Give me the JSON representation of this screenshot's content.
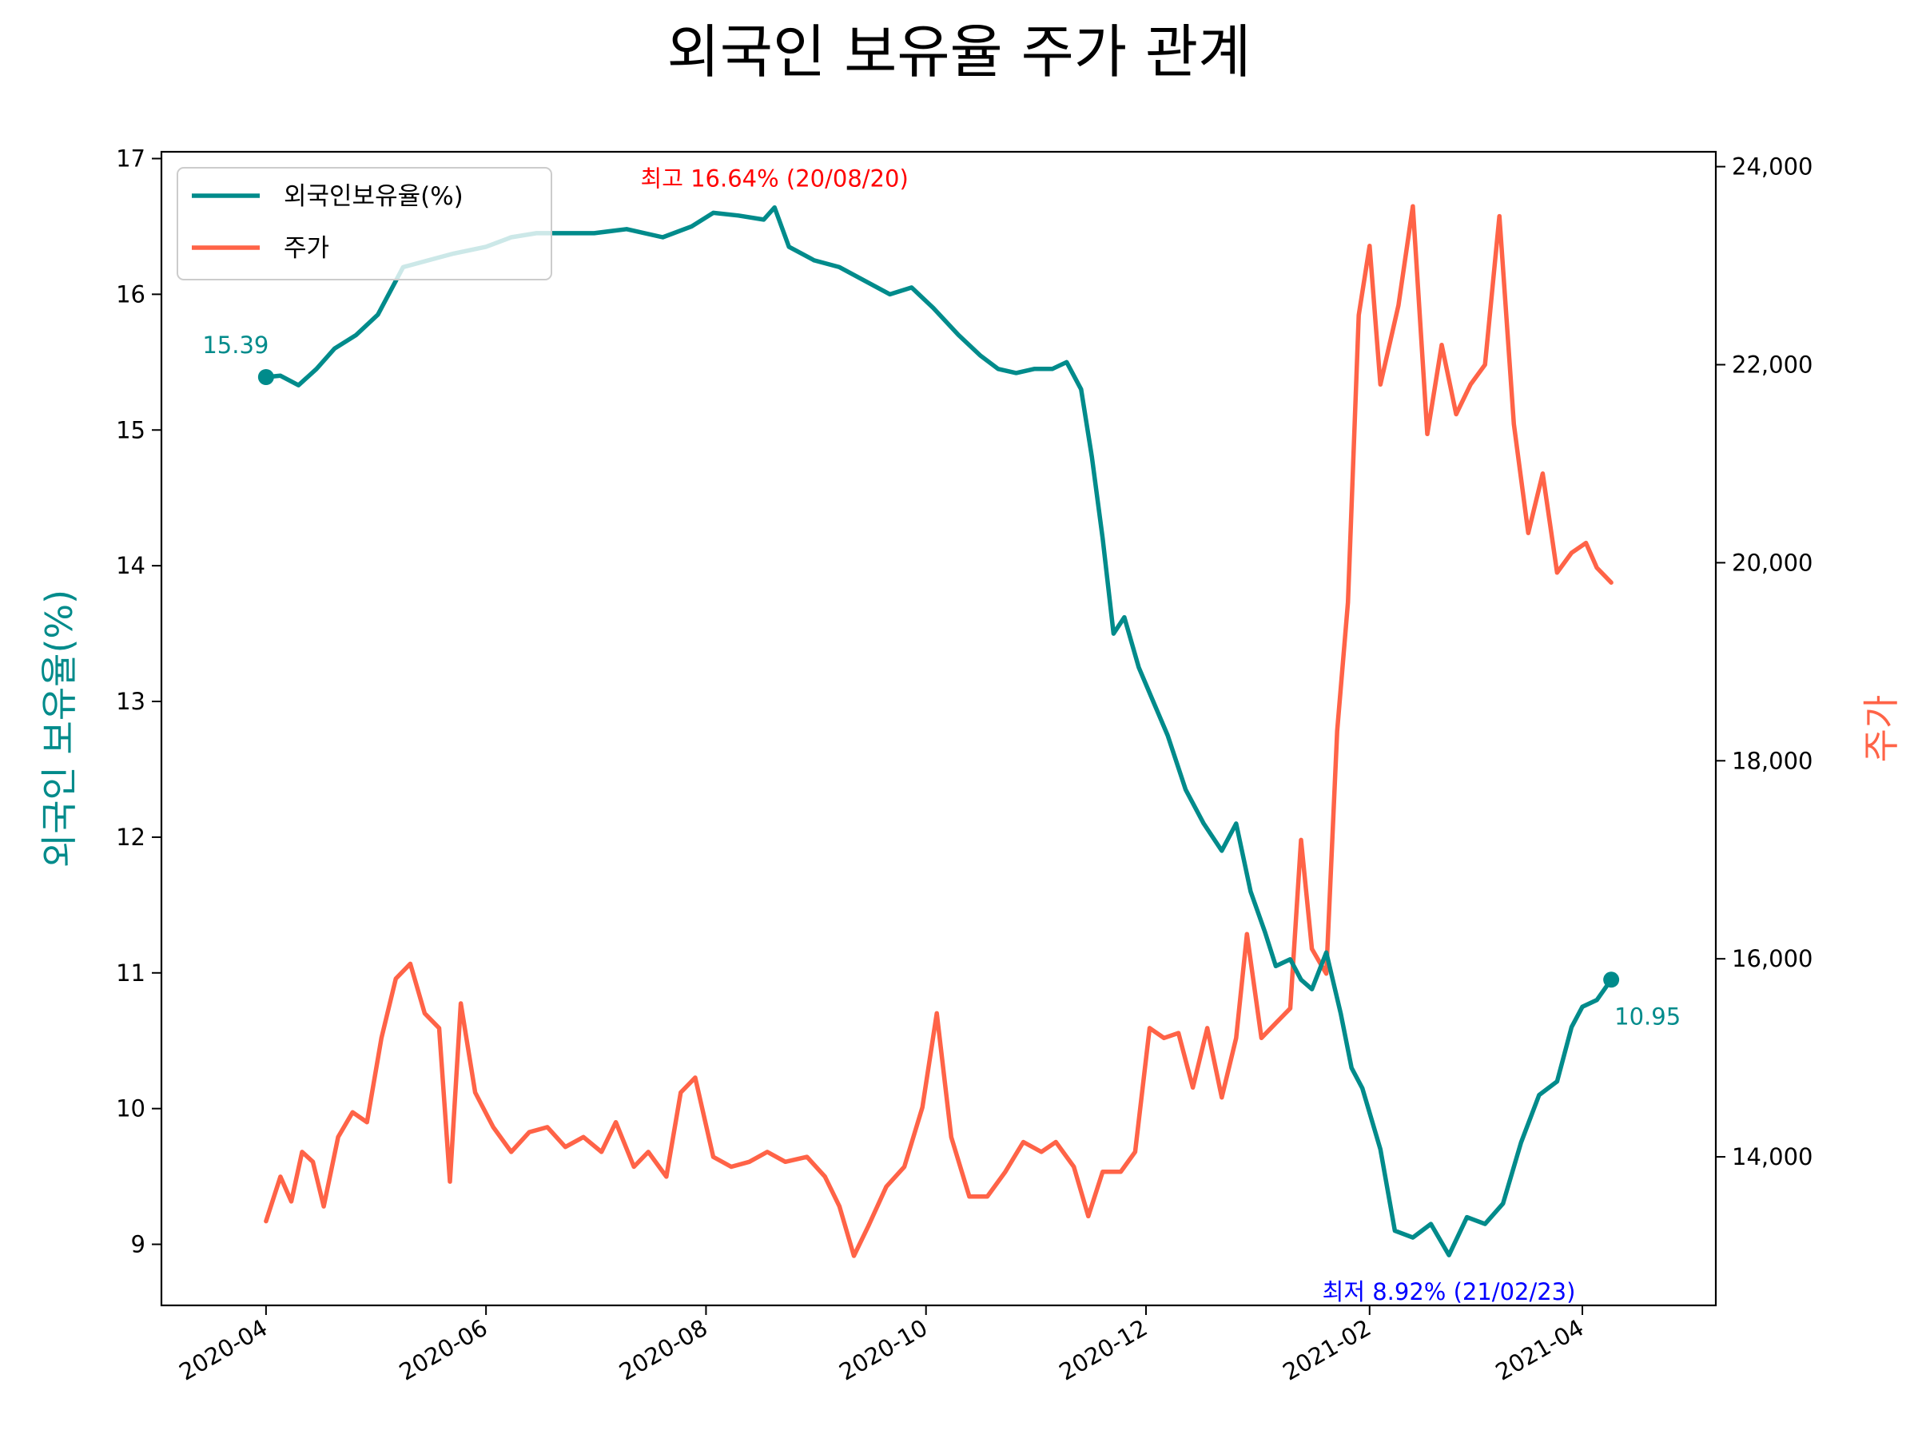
{
  "chart_data": {
    "type": "line",
    "title": "외국인 보유율 주가 관계",
    "xlabel": "",
    "x_start": "2020-04-01",
    "x_end": "2021-04-09",
    "xlim": [
      "2020-03-03",
      "2021-05-08"
    ],
    "x_ticks": [
      {
        "date": "2020-04-01",
        "label": "2020-04"
      },
      {
        "date": "2020-06-01",
        "label": "2020-06"
      },
      {
        "date": "2020-08-01",
        "label": "2020-08"
      },
      {
        "date": "2020-10-01",
        "label": "2020-10"
      },
      {
        "date": "2020-12-01",
        "label": "2020-12"
      },
      {
        "date": "2021-02-01",
        "label": "2021-02"
      },
      {
        "date": "2021-04-01",
        "label": "2021-04"
      }
    ],
    "y_left": {
      "label": "외국인 보유율(%)",
      "color": "#008b8b",
      "lim": [
        8.55,
        17.05
      ],
      "ticks": [
        9,
        10,
        11,
        12,
        13,
        14,
        15,
        16,
        17
      ]
    },
    "y_right": {
      "label": "주가",
      "color": "#ff6347",
      "lim": [
        12500,
        24150
      ],
      "ticks": [
        14000,
        16000,
        18000,
        20000,
        22000,
        24000
      ],
      "tick_labels": [
        "14,000",
        "16,000",
        "18,000",
        "20,000",
        "22,000",
        "24,000"
      ]
    },
    "grid": false,
    "legend_position": "top-left",
    "series": [
      {
        "name": "외국인보유율(%)",
        "axis": "left",
        "color": "#008b8b",
        "points": [
          [
            "2020-04-01",
            15.39
          ],
          [
            "2020-04-05",
            15.4
          ],
          [
            "2020-04-10",
            15.33
          ],
          [
            "2020-04-15",
            15.45
          ],
          [
            "2020-04-20",
            15.6
          ],
          [
            "2020-04-26",
            15.7
          ],
          [
            "2020-05-02",
            15.85
          ],
          [
            "2020-05-09",
            16.2
          ],
          [
            "2020-05-16",
            16.25
          ],
          [
            "2020-05-23",
            16.3
          ],
          [
            "2020-06-01",
            16.35
          ],
          [
            "2020-06-08",
            16.42
          ],
          [
            "2020-06-15",
            16.45
          ],
          [
            "2020-06-23",
            16.45
          ],
          [
            "2020-07-01",
            16.45
          ],
          [
            "2020-07-10",
            16.48
          ],
          [
            "2020-07-20",
            16.42
          ],
          [
            "2020-07-28",
            16.5
          ],
          [
            "2020-08-03",
            16.6
          ],
          [
            "2020-08-10",
            16.58
          ],
          [
            "2020-08-17",
            16.55
          ],
          [
            "2020-08-20",
            16.64
          ],
          [
            "2020-08-24",
            16.35
          ],
          [
            "2020-08-31",
            16.25
          ],
          [
            "2020-09-07",
            16.2
          ],
          [
            "2020-09-14",
            16.1
          ],
          [
            "2020-09-21",
            16.0
          ],
          [
            "2020-09-27",
            16.05
          ],
          [
            "2020-10-03",
            15.9
          ],
          [
            "2020-10-10",
            15.7
          ],
          [
            "2020-10-16",
            15.55
          ],
          [
            "2020-10-21",
            15.45
          ],
          [
            "2020-10-26",
            15.42
          ],
          [
            "2020-10-31",
            15.45
          ],
          [
            "2020-11-05",
            15.45
          ],
          [
            "2020-11-09",
            15.5
          ],
          [
            "2020-11-13",
            15.3
          ],
          [
            "2020-11-16",
            14.8
          ],
          [
            "2020-11-19",
            14.2
          ],
          [
            "2020-11-22",
            13.5
          ],
          [
            "2020-11-25",
            13.62
          ],
          [
            "2020-11-29",
            13.25
          ],
          [
            "2020-12-03",
            13.0
          ],
          [
            "2020-12-07",
            12.75
          ],
          [
            "2020-12-12",
            12.35
          ],
          [
            "2020-12-17",
            12.1
          ],
          [
            "2020-12-22",
            11.9
          ],
          [
            "2020-12-26",
            12.1
          ],
          [
            "2020-12-30",
            11.6
          ],
          [
            "2021-01-03",
            11.3
          ],
          [
            "2021-01-06",
            11.05
          ],
          [
            "2021-01-10",
            11.1
          ],
          [
            "2021-01-13",
            10.95
          ],
          [
            "2021-01-16",
            10.88
          ],
          [
            "2021-01-20",
            11.15
          ],
          [
            "2021-01-24",
            10.7
          ],
          [
            "2021-01-27",
            10.3
          ],
          [
            "2021-01-30",
            10.15
          ],
          [
            "2021-02-04",
            9.7
          ],
          [
            "2021-02-08",
            9.1
          ],
          [
            "2021-02-13",
            9.05
          ],
          [
            "2021-02-18",
            9.15
          ],
          [
            "2021-02-23",
            8.92
          ],
          [
            "2021-02-28",
            9.2
          ],
          [
            "2021-03-05",
            9.15
          ],
          [
            "2021-03-10",
            9.3
          ],
          [
            "2021-03-15",
            9.75
          ],
          [
            "2021-03-20",
            10.1
          ],
          [
            "2021-03-25",
            10.2
          ],
          [
            "2021-03-29",
            10.6
          ],
          [
            "2021-04-01",
            10.75
          ],
          [
            "2021-04-05",
            10.8
          ],
          [
            "2021-04-09",
            10.95
          ]
        ]
      },
      {
        "name": "주가",
        "axis": "right",
        "color": "#ff6347",
        "points": [
          [
            "2020-04-01",
            13350
          ],
          [
            "2020-04-05",
            13800
          ],
          [
            "2020-04-08",
            13550
          ],
          [
            "2020-04-11",
            14050
          ],
          [
            "2020-04-14",
            13950
          ],
          [
            "2020-04-17",
            13500
          ],
          [
            "2020-04-21",
            14200
          ],
          [
            "2020-04-25",
            14450
          ],
          [
            "2020-04-29",
            14350
          ],
          [
            "2020-05-03",
            15200
          ],
          [
            "2020-05-07",
            15800
          ],
          [
            "2020-05-11",
            15950
          ],
          [
            "2020-05-15",
            15450
          ],
          [
            "2020-05-19",
            15300
          ],
          [
            "2020-05-22",
            13750
          ],
          [
            "2020-05-25",
            15550
          ],
          [
            "2020-05-29",
            14650
          ],
          [
            "2020-06-03",
            14300
          ],
          [
            "2020-06-08",
            14050
          ],
          [
            "2020-06-13",
            14250
          ],
          [
            "2020-06-18",
            14300
          ],
          [
            "2020-06-23",
            14100
          ],
          [
            "2020-06-28",
            14200
          ],
          [
            "2020-07-03",
            14050
          ],
          [
            "2020-07-07",
            14350
          ],
          [
            "2020-07-12",
            13900
          ],
          [
            "2020-07-16",
            14050
          ],
          [
            "2020-07-21",
            13800
          ],
          [
            "2020-07-25",
            14650
          ],
          [
            "2020-07-29",
            14800
          ],
          [
            "2020-08-03",
            14000
          ],
          [
            "2020-08-08",
            13900
          ],
          [
            "2020-08-13",
            13950
          ],
          [
            "2020-08-18",
            14050
          ],
          [
            "2020-08-23",
            13950
          ],
          [
            "2020-08-29",
            14000
          ],
          [
            "2020-09-03",
            13800
          ],
          [
            "2020-09-07",
            13500
          ],
          [
            "2020-09-11",
            13000
          ],
          [
            "2020-09-15",
            13300
          ],
          [
            "2020-09-20",
            13700
          ],
          [
            "2020-09-25",
            13900
          ],
          [
            "2020-09-30",
            14500
          ],
          [
            "2020-10-04",
            15450
          ],
          [
            "2020-10-08",
            14200
          ],
          [
            "2020-10-13",
            13600
          ],
          [
            "2020-10-18",
            13600
          ],
          [
            "2020-10-23",
            13850
          ],
          [
            "2020-10-28",
            14150
          ],
          [
            "2020-11-02",
            14050
          ],
          [
            "2020-11-06",
            14150
          ],
          [
            "2020-11-11",
            13900
          ],
          [
            "2020-11-15",
            13400
          ],
          [
            "2020-11-19",
            13850
          ],
          [
            "2020-11-24",
            13850
          ],
          [
            "2020-11-28",
            14050
          ],
          [
            "2020-12-02",
            15300
          ],
          [
            "2020-12-06",
            15200
          ],
          [
            "2020-12-10",
            15250
          ],
          [
            "2020-12-14",
            14700
          ],
          [
            "2020-12-18",
            15300
          ],
          [
            "2020-12-22",
            14600
          ],
          [
            "2020-12-26",
            15200
          ],
          [
            "2020-12-29",
            16250
          ],
          [
            "2021-01-02",
            15200
          ],
          [
            "2021-01-06",
            15350
          ],
          [
            "2021-01-10",
            15500
          ],
          [
            "2021-01-13",
            17200
          ],
          [
            "2021-01-16",
            16100
          ],
          [
            "2021-01-20",
            15850
          ],
          [
            "2021-01-23",
            18300
          ],
          [
            "2021-01-26",
            19600
          ],
          [
            "2021-01-29",
            22500
          ],
          [
            "2021-02-01",
            23200
          ],
          [
            "2021-02-04",
            21800
          ],
          [
            "2021-02-09",
            22600
          ],
          [
            "2021-02-13",
            23600
          ],
          [
            "2021-02-17",
            21300
          ],
          [
            "2021-02-21",
            22200
          ],
          [
            "2021-02-25",
            21500
          ],
          [
            "2021-03-01",
            21800
          ],
          [
            "2021-03-05",
            22000
          ],
          [
            "2021-03-09",
            23500
          ],
          [
            "2021-03-13",
            21400
          ],
          [
            "2021-03-17",
            20300
          ],
          [
            "2021-03-21",
            20900
          ],
          [
            "2021-03-25",
            19900
          ],
          [
            "2021-03-29",
            20100
          ],
          [
            "2021-04-02",
            20200
          ],
          [
            "2021-04-05",
            19950
          ],
          [
            "2021-04-09",
            19800
          ]
        ]
      }
    ],
    "markers": [
      {
        "series": 0,
        "date": "2020-04-01",
        "value": 15.39,
        "label": "15.39",
        "label_pos": "above"
      },
      {
        "series": 0,
        "date": "2021-04-09",
        "value": 10.95,
        "label": "10.95",
        "label_pos": "below"
      }
    ],
    "annotations": [
      {
        "text": "최고 16.64% (20/08/20)",
        "date": "2020-08-20",
        "value": 16.64,
        "color": "#ff0000",
        "position": "above"
      },
      {
        "text": "최저 8.92% (21/02/23)",
        "date": "2021-02-23",
        "value": 8.92,
        "color": "#0000ff",
        "position": "below"
      }
    ]
  }
}
